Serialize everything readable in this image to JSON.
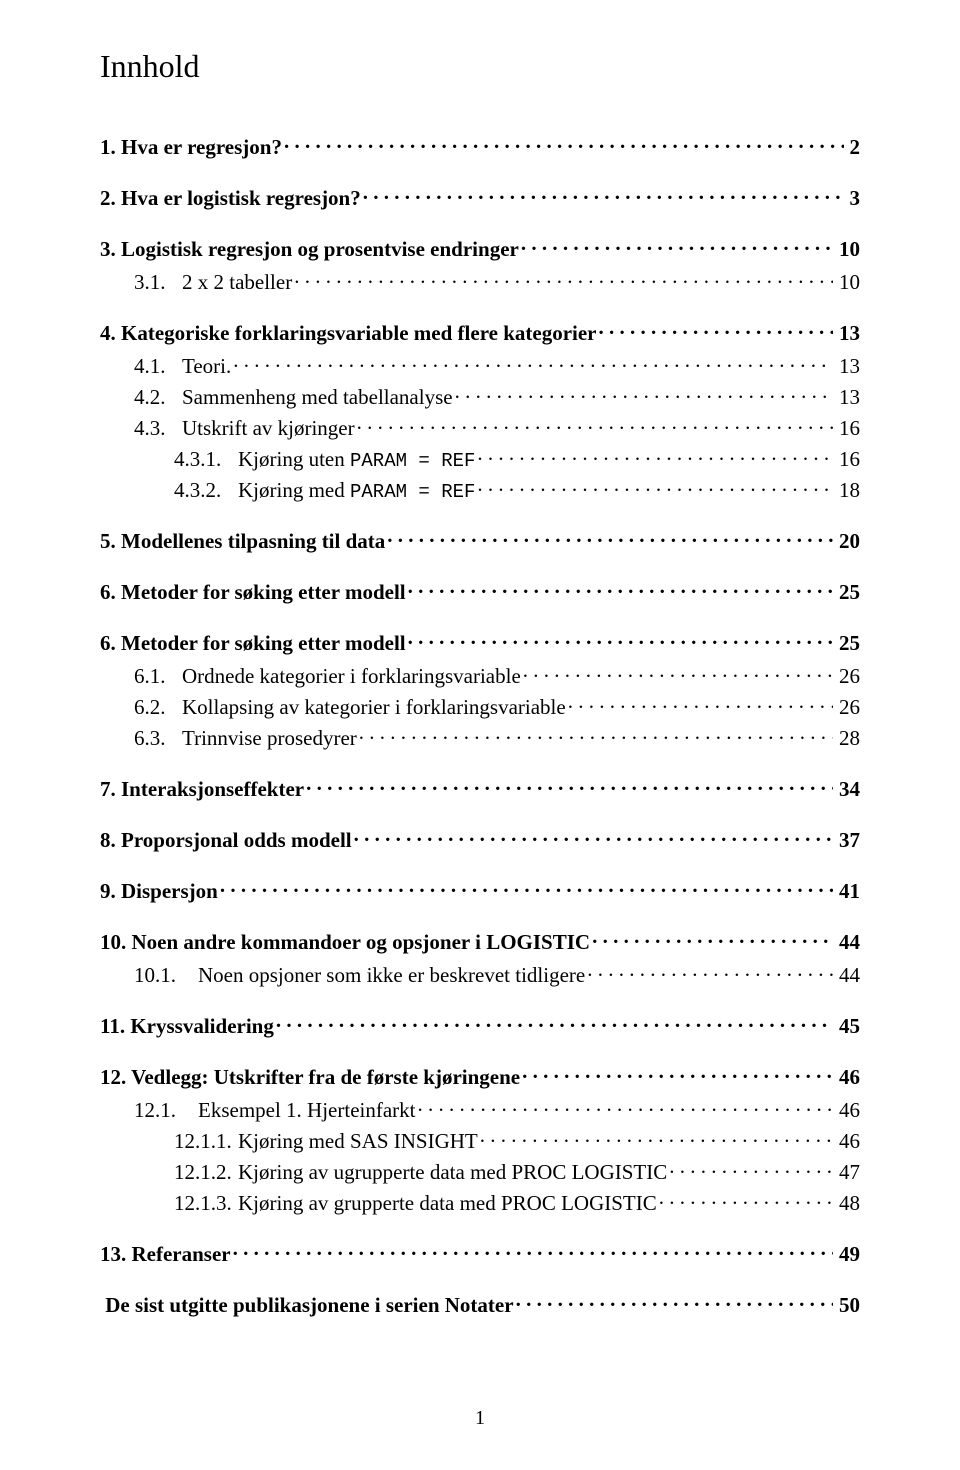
{
  "title": "Innhold",
  "page_footer": "1",
  "font": {
    "body_family": "Times New Roman",
    "mono_family": "Courier New",
    "title_size_pt": 24,
    "entry_size_pt": 16
  },
  "colors": {
    "text": "#000000",
    "background": "#ffffff"
  },
  "toc": [
    {
      "level": 1,
      "num": "1.",
      "text": "Hva er regresjon?",
      "page": "2"
    },
    {
      "level": 1,
      "num": "2.",
      "text": "Hva er logistisk regresjon?",
      "page": "3"
    },
    {
      "level": 1,
      "num": "3.",
      "text": "Logistisk regresjon og prosentvise endringer",
      "page": "10"
    },
    {
      "level": 2,
      "num": "3.1.",
      "text": "2 x 2 tabeller",
      "page": "10"
    },
    {
      "level": 1,
      "num": "4.",
      "text": "Kategoriske forklaringsvariable med flere kategorier",
      "page": "13"
    },
    {
      "level": 2,
      "num": "4.1.",
      "text": "Teori.",
      "page": "13"
    },
    {
      "level": 2,
      "num": "4.2.",
      "text": "Sammenheng med tabellanalyse",
      "page": "13"
    },
    {
      "level": 2,
      "num": "4.3.",
      "text": "Utskrift av kjøringer",
      "page": "16"
    },
    {
      "level": 3,
      "num": "4.3.1.",
      "text": "Kjøring uten ",
      "mono": "PARAM = REF",
      "page": "16"
    },
    {
      "level": 3,
      "num": "4.3.2.",
      "text": "Kjøring med ",
      "mono": "PARAM = REF",
      "page": "18"
    },
    {
      "level": 1,
      "num": "5.",
      "text": "Modellenes tilpasning til data",
      "page": "20"
    },
    {
      "level": 1,
      "num": "6.",
      "text": "Metoder for søking etter modell",
      "page": "25"
    },
    {
      "level": 1,
      "num": "6.",
      "text": "Metoder for søking etter modell",
      "page": "25"
    },
    {
      "level": 2,
      "num": "6.1.",
      "text": "Ordnede kategorier i forklaringsvariable",
      "page": "26"
    },
    {
      "level": 2,
      "num": "6.2.",
      "text": "Kollapsing av kategorier i forklaringsvariable",
      "page": "26"
    },
    {
      "level": 2,
      "num": "6.3.",
      "text": "Trinnvise prosedyrer",
      "page": "28"
    },
    {
      "level": 1,
      "num": "7.",
      "text": "Interaksjonseffekter",
      "page": "34"
    },
    {
      "level": 1,
      "num": "8.",
      "text": "Proporsjonal odds modell",
      "page": "37"
    },
    {
      "level": 1,
      "num": "9.",
      "text": "Dispersjon",
      "page": "41"
    },
    {
      "level": 1,
      "num": "10.",
      "text": "Noen andre kommandoer og opsjoner i LOGISTIC",
      "page": "44"
    },
    {
      "level": 2,
      "num": "10.1.",
      "text": "Noen opsjoner som ikke er beskrevet tidligere",
      "page": "44",
      "wide": true
    },
    {
      "level": 1,
      "num": "11.",
      "text": "Kryssvalidering",
      "page": "45"
    },
    {
      "level": 1,
      "num": "12.",
      "text": "Vedlegg: Utskrifter fra de første kjøringene",
      "page": "46"
    },
    {
      "level": 2,
      "num": "12.1.",
      "text": "Eksempel 1. Hjerteinfarkt",
      "page": "46",
      "wide": true
    },
    {
      "level": 3,
      "num": "12.1.1.",
      "text": "Kjøring med SAS INSIGHT",
      "page": "46"
    },
    {
      "level": 3,
      "num": "12.1.2.",
      "text": "Kjøring av ugrupperte data med PROC LOGISTIC",
      "page": "47"
    },
    {
      "level": 3,
      "num": "12.1.3.",
      "text": "Kjøring av grupperte data med PROC LOGISTIC",
      "page": "48"
    },
    {
      "level": 1,
      "num": "13.",
      "text": "Referanser",
      "page": "49"
    },
    {
      "level": 1,
      "num": "",
      "text": "De sist utgitte publikasjonene i serien Notater ",
      "page": "50"
    }
  ]
}
